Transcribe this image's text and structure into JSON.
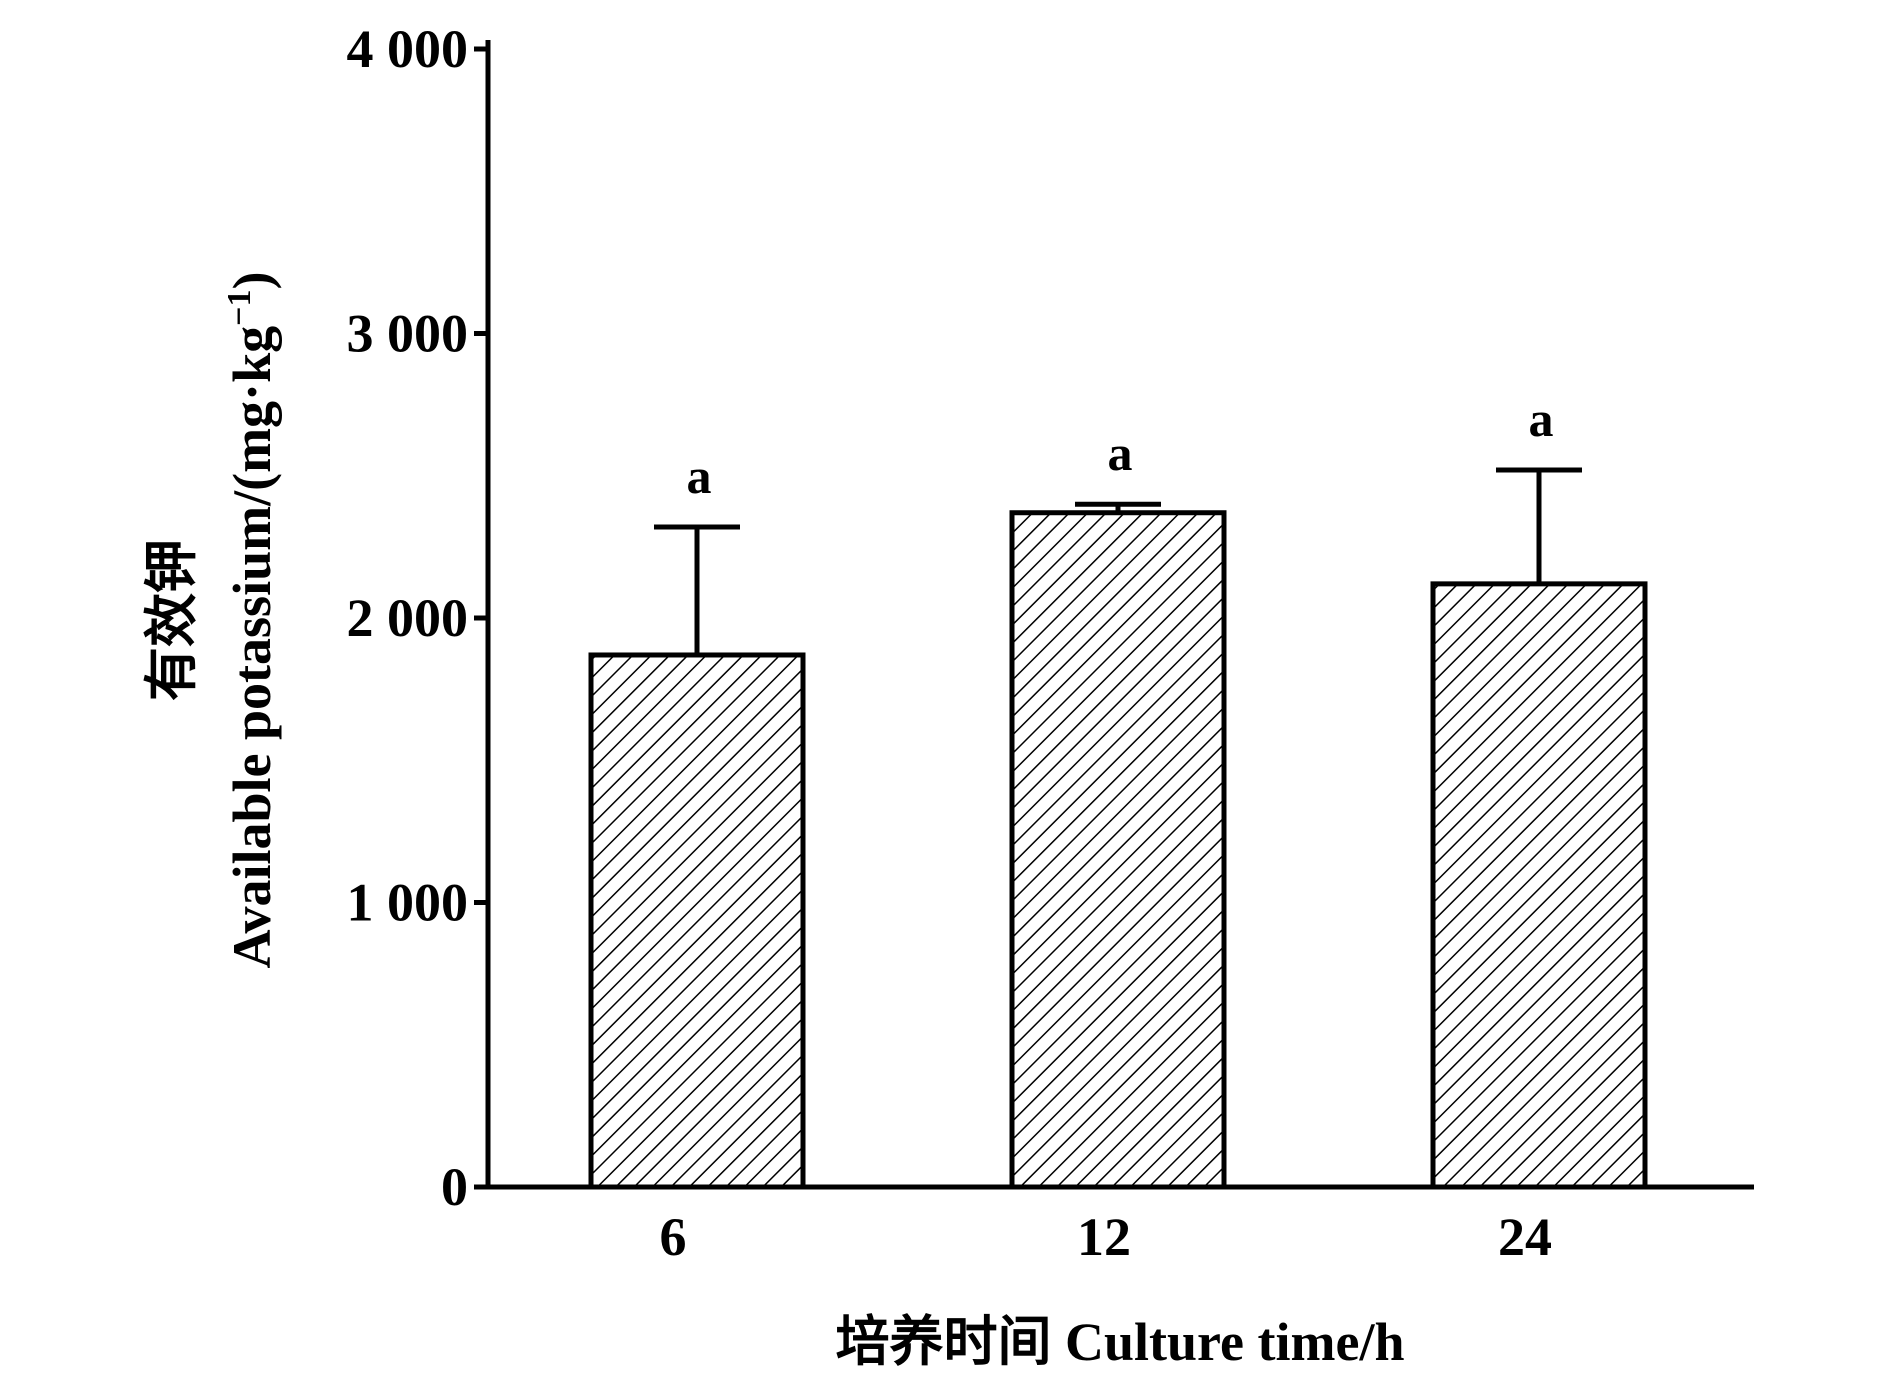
{
  "chart_data": {
    "type": "bar",
    "categories": [
      "6",
      "12",
      "24"
    ],
    "values": [
      1870,
      2370,
      2120
    ],
    "error_plus": [
      450,
      30,
      400
    ],
    "significance_labels": [
      "a",
      "a",
      "a"
    ],
    "xlabel": "培养时间 Culture time/h",
    "ylabel_cn": "有效钾",
    "ylabel_en": "Available potassium/(mg·kg",
    "ylabel_sup": "−1",
    "ylabel_end": ")",
    "ylim": [
      0,
      4000
    ],
    "yticks": [
      0,
      1000,
      2000,
      3000,
      4000
    ],
    "ytick_labels": [
      "0",
      "1 000",
      "2 000",
      "3 000",
      "4 000"
    ],
    "bar_fill": "hatched",
    "colors": {
      "bar_stroke": "#000000",
      "hatch": "#000000",
      "background": "#ffffff"
    },
    "grid": false,
    "legend": "none"
  }
}
